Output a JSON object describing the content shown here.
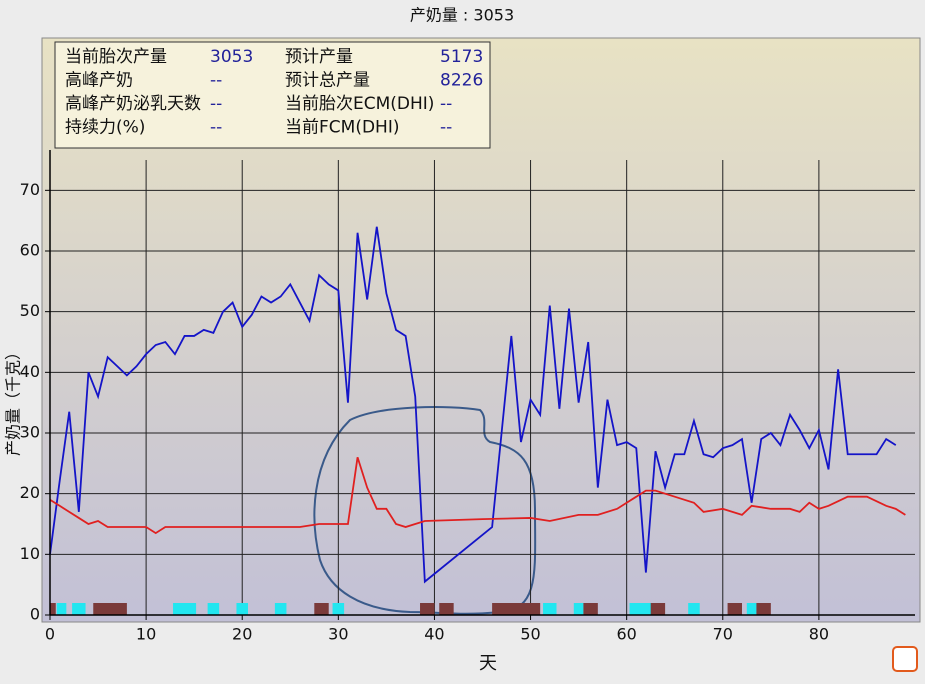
{
  "chart_data": {
    "type": "line",
    "title": "产奶量 : 3053",
    "x_label": "天",
    "y_label": "产奶量（千克）",
    "info": [
      [
        "当前胎次产量",
        "3053",
        "预计产量",
        "5173"
      ],
      [
        "高峰产奶",
        "--",
        "预计总产量",
        "8226"
      ],
      [
        "高峰产奶泌乳天数",
        "--",
        "当前胎次ECM(DHI)",
        "--"
      ],
      [
        "持续力(%)",
        "--",
        "当前FCM(DHI)",
        "--"
      ]
    ],
    "xlim": [
      0,
      90
    ],
    "ylim": [
      0,
      75
    ],
    "xticks": [
      0,
      10,
      20,
      30,
      40,
      50,
      60,
      70,
      80
    ],
    "yticks": [
      0,
      10,
      20,
      30,
      40,
      50,
      60,
      70
    ],
    "grid": true,
    "series": [
      {
        "color": "#1414c8",
        "x": [
          0,
          1,
          2,
          3,
          4,
          5,
          6,
          7,
          8,
          9,
          10,
          11,
          12,
          13,
          14,
          15,
          16,
          17,
          18,
          19,
          20,
          21,
          22,
          23,
          24,
          25,
          26,
          27,
          28,
          29,
          30,
          31,
          32,
          33,
          34,
          35,
          36,
          37,
          38,
          39,
          46,
          48,
          49,
          50,
          51,
          52,
          53,
          54,
          55,
          56,
          57,
          58,
          59,
          60,
          61,
          62,
          63,
          64,
          65,
          66,
          67,
          68,
          69,
          70,
          71,
          72,
          73,
          74,
          75,
          76,
          77,
          78,
          79,
          80,
          81,
          82,
          83,
          84,
          85,
          86,
          87,
          88
        ],
        "values": [
          10,
          22,
          33.5,
          17,
          40,
          36,
          42.5,
          41,
          39.5,
          41,
          43,
          44.5,
          45,
          43,
          46,
          46,
          47,
          46.5,
          50,
          51.5,
          47.5,
          49.5,
          52.5,
          51.5,
          52.5,
          54.5,
          51.5,
          48.5,
          56,
          54.5,
          53.5,
          35,
          63,
          52,
          64,
          53,
          47,
          46,
          36,
          5.5,
          14.5,
          46,
          28.5,
          35.5,
          33,
          51,
          34,
          50.5,
          35,
          45,
          21,
          35.5,
          28,
          28.5,
          27.5,
          7,
          27,
          21,
          26.5,
          26.5,
          32,
          26.5,
          26,
          27.5,
          28,
          29,
          18.5,
          29,
          30,
          28,
          33,
          30.5,
          27.5,
          30.5,
          24,
          40.5,
          26.5,
          26.5,
          26.5,
          26.5,
          29,
          28
        ]
      },
      {
        "color": "#e02020",
        "x": [
          0,
          1,
          2,
          3,
          4,
          5,
          6,
          8,
          10,
          11,
          12,
          14,
          16,
          18,
          20,
          22,
          24,
          26,
          28,
          30,
          31,
          32,
          33,
          34,
          35,
          36,
          37,
          38,
          39,
          45,
          50,
          52,
          55,
          57,
          59,
          60,
          62,
          63,
          65,
          67,
          68,
          70,
          72,
          73,
          75,
          77,
          78,
          79,
          80,
          81,
          83,
          85,
          87,
          88,
          89
        ],
        "values": [
          19,
          18,
          17,
          16,
          15,
          15.5,
          14.5,
          14.5,
          14.5,
          13.5,
          14.5,
          14.5,
          14.5,
          14.5,
          14.5,
          14.5,
          14.5,
          14.5,
          15,
          15,
          15,
          26,
          21,
          17.5,
          17.5,
          15,
          14.5,
          15,
          15.5,
          15.8,
          16,
          15.5,
          16.5,
          16.5,
          17.5,
          18.5,
          20.5,
          20.5,
          19.5,
          18.5,
          17,
          17.5,
          16.5,
          18,
          17.5,
          17.5,
          17,
          18.5,
          17.5,
          18,
          19.5,
          19.5,
          18,
          17.5,
          16.5
        ]
      }
    ],
    "events": [
      {
        "color": "#22e6f0",
        "ranges": [
          [
            0.7,
            1.7
          ],
          [
            2.3,
            3.7
          ],
          [
            12.8,
            15.2
          ],
          [
            16.4,
            17.6
          ],
          [
            19.4,
            20.6
          ],
          [
            23.4,
            24.6
          ],
          [
            29.4,
            30.6
          ],
          [
            51.3,
            52.7
          ],
          [
            54.5,
            55.5
          ],
          [
            60.3,
            62.6
          ],
          [
            66.4,
            67.6
          ],
          [
            72.5,
            73.5
          ]
        ]
      },
      {
        "color": "#7a3a3a",
        "ranges": [
          [
            0,
            0.6
          ],
          [
            4.5,
            8
          ],
          [
            27.5,
            29
          ],
          [
            38.5,
            40
          ],
          [
            40.5,
            42
          ],
          [
            46,
            51
          ],
          [
            55.5,
            57
          ],
          [
            62.5,
            64
          ],
          [
            70.5,
            72
          ],
          [
            73.5,
            75
          ]
        ]
      }
    ]
  }
}
